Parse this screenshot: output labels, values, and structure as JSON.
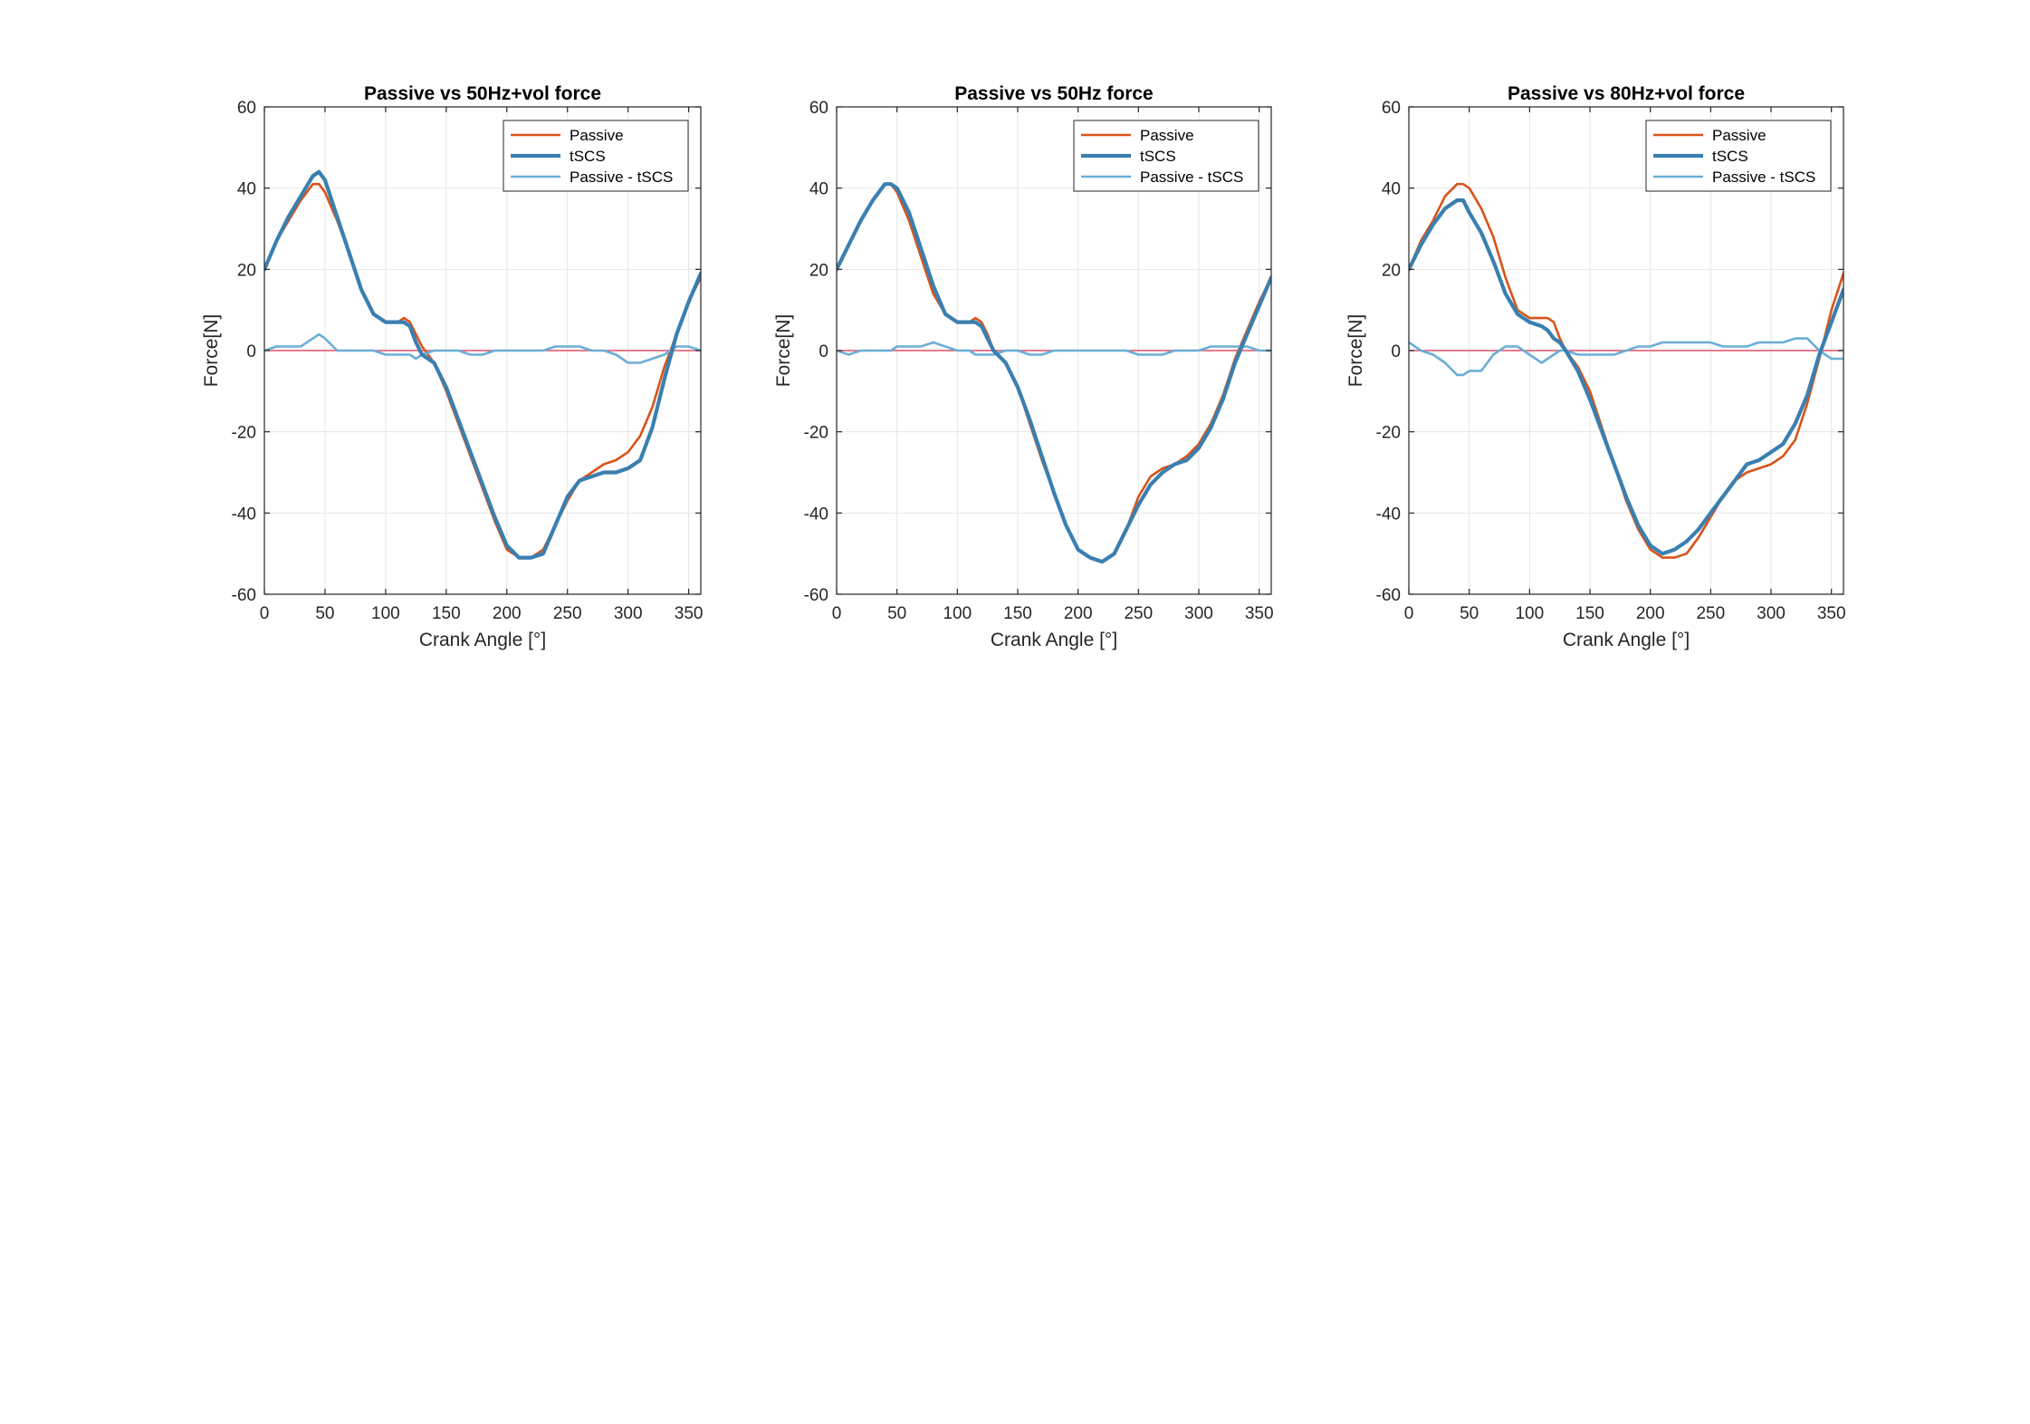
{
  "colors": {
    "passive": "#D95319",
    "tscs": "#3A7FB0",
    "diff": "#6BAED6",
    "zero_line": "#E0506A",
    "grid": "#E6E6E6",
    "axis": "#262626"
  },
  "chart_data": [
    {
      "type": "line",
      "title": "Passive vs 50Hz+vol force",
      "xlabel": "Crank Angle [°]",
      "ylabel": "Force[N]",
      "xlim": [
        0,
        360
      ],
      "ylim": [
        -60,
        60
      ],
      "xticks": [
        0,
        50,
        100,
        150,
        200,
        250,
        300,
        350
      ],
      "yticks": [
        -60,
        -40,
        -20,
        0,
        20,
        40,
        60
      ],
      "grid": true,
      "legend_position": "top-right",
      "series": [
        {
          "name": "Passive",
          "x": [
            0,
            10,
            20,
            30,
            40,
            45,
            50,
            60,
            70,
            80,
            90,
            100,
            110,
            115,
            120,
            125,
            130,
            140,
            150,
            160,
            170,
            180,
            190,
            200,
            210,
            220,
            230,
            240,
            250,
            260,
            270,
            280,
            290,
            300,
            310,
            320,
            330,
            340,
            350,
            360
          ],
          "y": [
            20,
            27,
            32,
            37,
            41,
            41,
            39,
            32,
            24,
            15,
            9,
            7,
            7,
            8,
            7,
            4,
            1,
            -3,
            -10,
            -18,
            -26,
            -34,
            -42,
            -49,
            -51,
            -51,
            -49,
            -43,
            -37,
            -32,
            -30,
            -28,
            -27,
            -25,
            -21,
            -14,
            -4,
            4,
            12,
            18
          ]
        },
        {
          "name": "tSCS",
          "x": [
            0,
            10,
            20,
            30,
            40,
            45,
            50,
            60,
            70,
            80,
            90,
            100,
            110,
            115,
            120,
            125,
            130,
            140,
            150,
            160,
            170,
            180,
            190,
            200,
            210,
            220,
            230,
            240,
            250,
            260,
            270,
            280,
            290,
            300,
            310,
            320,
            330,
            340,
            350,
            360
          ],
          "y": [
            20,
            27,
            33,
            38,
            43,
            44,
            42,
            33,
            24,
            15,
            9,
            7,
            7,
            7,
            6,
            2,
            -1,
            -3,
            -9,
            -17,
            -25,
            -33,
            -41,
            -48,
            -51,
            -51,
            -50,
            -43,
            -36,
            -32,
            -31,
            -30,
            -30,
            -29,
            -27,
            -19,
            -7,
            4,
            12,
            19
          ]
        },
        {
          "name": "Passive - tSCS",
          "x": [
            0,
            10,
            20,
            30,
            40,
            45,
            50,
            60,
            70,
            80,
            90,
            100,
            110,
            115,
            120,
            125,
            130,
            140,
            150,
            160,
            170,
            180,
            190,
            200,
            210,
            220,
            230,
            240,
            250,
            260,
            270,
            280,
            290,
            300,
            310,
            320,
            330,
            340,
            350,
            360
          ],
          "y": [
            0,
            1,
            1,
            1,
            3,
            4,
            3,
            0,
            0,
            0,
            0,
            -1,
            -1,
            -1,
            -1,
            -2,
            -1,
            0,
            0,
            0,
            -1,
            -1,
            0,
            0,
            0,
            0,
            0,
            1,
            1,
            1,
            0,
            0,
            -1,
            -3,
            -3,
            -2,
            -1,
            1,
            1,
            0
          ]
        },
        {
          "name": "",
          "x": [
            0,
            360
          ],
          "y": [
            0,
            0
          ]
        }
      ]
    },
    {
      "type": "line",
      "title": "Passive vs 50Hz force",
      "xlabel": "Crank Angle [°]",
      "ylabel": "Force[N]",
      "xlim": [
        0,
        360
      ],
      "ylim": [
        -60,
        60
      ],
      "xticks": [
        0,
        50,
        100,
        150,
        200,
        250,
        300,
        350
      ],
      "yticks": [
        -60,
        -40,
        -20,
        0,
        20,
        40,
        60
      ],
      "grid": true,
      "legend_position": "top-right",
      "series": [
        {
          "name": "Passive",
          "x": [
            0,
            10,
            20,
            30,
            40,
            45,
            50,
            60,
            70,
            80,
            90,
            100,
            110,
            115,
            120,
            125,
            130,
            140,
            150,
            160,
            170,
            180,
            190,
            200,
            210,
            220,
            230,
            240,
            250,
            260,
            270,
            280,
            290,
            300,
            310,
            320,
            330,
            340,
            350,
            360
          ],
          "y": [
            20,
            26,
            32,
            37,
            41,
            41,
            39,
            32,
            23,
            14,
            9,
            7,
            7,
            8,
            7,
            4,
            0,
            -3,
            -9,
            -18,
            -27,
            -35,
            -43,
            -49,
            -51,
            -52,
            -50,
            -44,
            -36,
            -31,
            -29,
            -28,
            -26,
            -23,
            -18,
            -11,
            -2,
            5,
            12,
            18
          ]
        },
        {
          "name": "tSCS",
          "x": [
            0,
            10,
            20,
            30,
            40,
            45,
            50,
            60,
            70,
            80,
            90,
            100,
            110,
            115,
            120,
            125,
            130,
            140,
            150,
            160,
            170,
            180,
            190,
            200,
            210,
            220,
            230,
            240,
            250,
            260,
            270,
            280,
            290,
            300,
            310,
            320,
            330,
            340,
            350,
            360
          ],
          "y": [
            20,
            26,
            32,
            37,
            41,
            41,
            40,
            34,
            25,
            16,
            9,
            7,
            7,
            7,
            6,
            3,
            0,
            -3,
            -9,
            -17,
            -26,
            -35,
            -43,
            -49,
            -51,
            -52,
            -50,
            -44,
            -38,
            -33,
            -30,
            -28,
            -27,
            -24,
            -19,
            -12,
            -3,
            4,
            11,
            18
          ]
        },
        {
          "name": "Passive - tSCS",
          "x": [
            0,
            10,
            20,
            30,
            40,
            45,
            50,
            60,
            70,
            80,
            90,
            100,
            110,
            115,
            120,
            125,
            130,
            140,
            150,
            160,
            170,
            180,
            190,
            200,
            210,
            220,
            230,
            240,
            250,
            260,
            270,
            280,
            290,
            300,
            310,
            320,
            330,
            340,
            350,
            360
          ],
          "y": [
            0,
            -1,
            0,
            0,
            0,
            0,
            1,
            1,
            1,
            2,
            1,
            0,
            0,
            -1,
            -1,
            -1,
            -1,
            0,
            0,
            -1,
            -1,
            0,
            0,
            0,
            0,
            0,
            0,
            0,
            -1,
            -1,
            -1,
            0,
            0,
            0,
            1,
            1,
            1,
            1,
            0,
            0
          ]
        },
        {
          "name": "",
          "x": [
            0,
            360
          ],
          "y": [
            0,
            0
          ]
        }
      ]
    },
    {
      "type": "line",
      "title": "Passive vs 80Hz+vol force",
      "xlabel": "Crank Angle [°]",
      "ylabel": "Force[N]",
      "xlim": [
        0,
        360
      ],
      "ylim": [
        -60,
        60
      ],
      "xticks": [
        0,
        50,
        100,
        150,
        200,
        250,
        300,
        350
      ],
      "yticks": [
        -60,
        -40,
        -20,
        0,
        20,
        40,
        60
      ],
      "grid": true,
      "legend_position": "top-right",
      "series": [
        {
          "name": "Passive",
          "x": [
            0,
            10,
            20,
            30,
            40,
            45,
            50,
            60,
            70,
            80,
            90,
            100,
            110,
            115,
            120,
            125,
            130,
            140,
            150,
            160,
            170,
            180,
            190,
            200,
            210,
            220,
            230,
            240,
            250,
            260,
            270,
            280,
            290,
            300,
            310,
            320,
            330,
            340,
            350,
            360
          ],
          "y": [
            20,
            27,
            32,
            38,
            41,
            41,
            40,
            35,
            28,
            18,
            10,
            8,
            8,
            8,
            7,
            3,
            0,
            -4,
            -10,
            -19,
            -28,
            -37,
            -44,
            -49,
            -51,
            -51,
            -50,
            -46,
            -41,
            -36,
            -32,
            -30,
            -29,
            -28,
            -26,
            -22,
            -13,
            -2,
            10,
            19
          ]
        },
        {
          "name": "tSCS",
          "x": [
            0,
            10,
            20,
            30,
            40,
            45,
            50,
            60,
            70,
            80,
            90,
            100,
            110,
            115,
            120,
            125,
            130,
            140,
            150,
            160,
            170,
            180,
            190,
            200,
            210,
            220,
            230,
            240,
            250,
            260,
            270,
            280,
            290,
            300,
            310,
            320,
            330,
            340,
            350,
            360
          ],
          "y": [
            20,
            26,
            31,
            35,
            37,
            37,
            34,
            29,
            22,
            14,
            9,
            7,
            6,
            5,
            3,
            2,
            0,
            -5,
            -12,
            -20,
            -28,
            -36,
            -43,
            -48,
            -50,
            -49,
            -47,
            -44,
            -40,
            -36,
            -32,
            -28,
            -27,
            -25,
            -23,
            -18,
            -11,
            -1,
            7,
            15
          ]
        },
        {
          "name": "Passive - tSCS",
          "x": [
            0,
            10,
            20,
            30,
            40,
            45,
            50,
            60,
            70,
            80,
            90,
            100,
            110,
            115,
            120,
            125,
            130,
            140,
            150,
            160,
            170,
            180,
            190,
            200,
            210,
            220,
            230,
            240,
            250,
            260,
            270,
            280,
            290,
            300,
            310,
            320,
            330,
            340,
            350,
            360
          ],
          "y": [
            2,
            0,
            -1,
            -3,
            -6,
            -6,
            -5,
            -5,
            -1,
            1,
            1,
            -1,
            -3,
            -2,
            -1,
            0,
            0,
            -1,
            -1,
            -1,
            -1,
            0,
            1,
            1,
            2,
            2,
            2,
            2,
            2,
            1,
            1,
            1,
            2,
            2,
            2,
            3,
            3,
            0,
            -2,
            -2
          ]
        },
        {
          "name": "",
          "x": [
            0,
            360
          ],
          "y": [
            0,
            0
          ]
        }
      ]
    }
  ]
}
